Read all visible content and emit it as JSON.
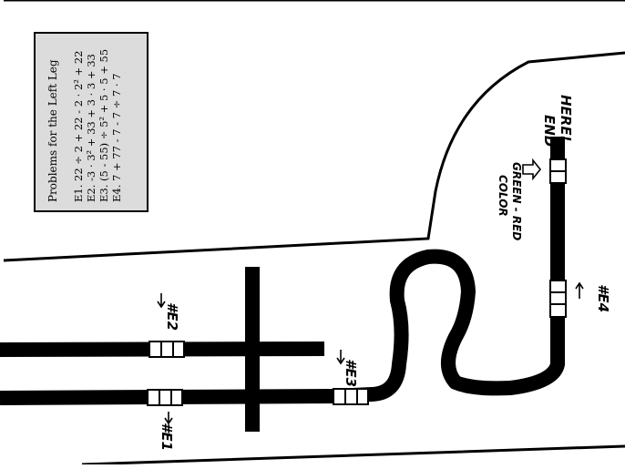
{
  "problems_box": {
    "title": "Problems for the Left Leg",
    "items": [
      "E1.  22 ÷ 2 + 22 - 2 · 2² + 22",
      "E2.  -3 · 3² + 33 + 3 · 3 + 33",
      "E3.  (5 - 55) ÷ 5² + 5 · 5 + 55",
      "E4.  7 + 77 - 7 - 7 ÷ 7 · 7"
    ]
  },
  "labels": {
    "e1": "#E1",
    "e2": "#E2",
    "e3": "#E3",
    "e4": "#E4",
    "end_line1": "END",
    "end_line2": "HERE!",
    "color_line1": "COLOR",
    "color_line2": "GREEN - RED"
  },
  "colors": {
    "ink": "#000000",
    "box_fill": "#dcdcdc",
    "paper": "#ffffff"
  }
}
